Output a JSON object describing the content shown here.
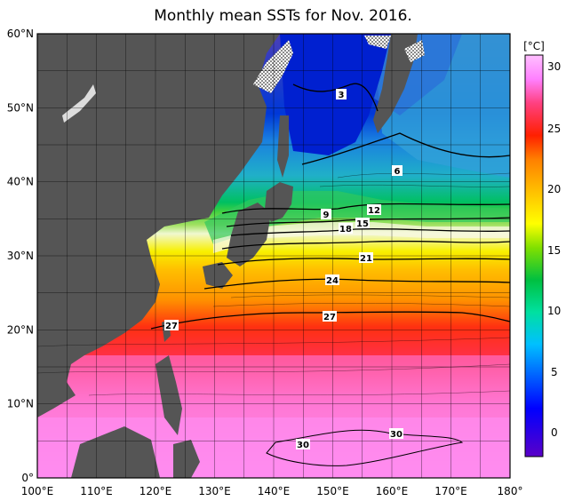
{
  "title": "Monthly mean SSTs for Nov. 2016.",
  "colors": {
    "land": "#555555",
    "ice": "#ffffff",
    "grid": "#000000"
  },
  "lat_axis": [
    "60°N",
    "50°N",
    "40°N",
    "30°N",
    "20°N",
    "10°N",
    "0°"
  ],
  "lon_axis": [
    "100°E",
    "110°E",
    "120°E",
    "130°E",
    "140°E",
    "150°E",
    "160°E",
    "170°E",
    "180°"
  ],
  "colorbar": {
    "unit": "[°C]",
    "ticks": [
      "30",
      "25",
      "20",
      "15",
      "10",
      "5",
      "0"
    ],
    "range": [
      -2,
      32
    ],
    "stops": [
      "#5a00c8",
      "#0000ff",
      "#0060ff",
      "#00c0ff",
      "#00e0a0",
      "#00c040",
      "#80e000",
      "#ffff00",
      "#ffc000",
      "#ff8000",
      "#ff2000",
      "#ff4080",
      "#ff80ff",
      "#ffc0ff"
    ]
  },
  "contour_labels": [
    "3",
    "6",
    "9",
    "12",
    "15",
    "18",
    "21",
    "24",
    "27",
    "27",
    "30",
    "30"
  ]
}
